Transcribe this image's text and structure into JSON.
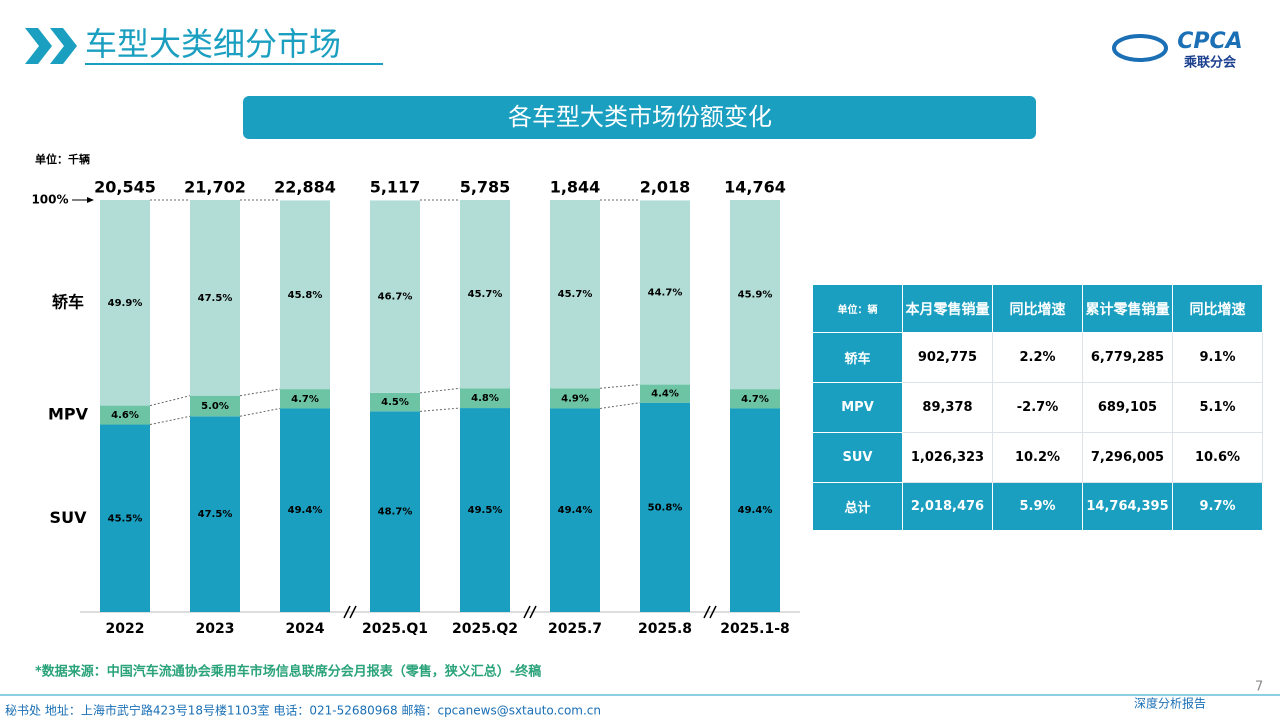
{
  "header": {
    "title": "车型大类细分市场",
    "logo_text": "CPCA",
    "logo_subtitle": "乘联分会"
  },
  "chart_data": {
    "type": "bar",
    "stacked": true,
    "title": "各车型大类市场份额变化",
    "unit_label": "单位：千辆",
    "categories": [
      "2022",
      "2023",
      "2024",
      "2025.Q1",
      "2025.Q2",
      "2025.7",
      "2025.8",
      "2025.1-8"
    ],
    "series": [
      {
        "name": "SUV",
        "color": "#1a9fc0",
        "values": [
          45.5,
          47.5,
          49.4,
          48.7,
          49.5,
          49.4,
          50.8,
          49.4
        ],
        "value_labels": [
          "45.5%",
          "47.5%",
          "49.4%",
          "48.7%",
          "49.5%",
          "49.4%",
          "50.8%",
          "49.4%"
        ]
      },
      {
        "name": "MPV",
        "color": "#6cc4a4",
        "values": [
          4.6,
          5.0,
          4.7,
          4.5,
          4.8,
          4.9,
          4.4,
          4.7
        ],
        "value_labels": [
          "4.6%",
          "5.0%",
          "4.7%",
          "4.5%",
          "4.8%",
          "4.9%",
          "4.4%",
          "4.7%"
        ]
      },
      {
        "name": "轿车",
        "color": "#b1ddd6",
        "values": [
          49.9,
          47.5,
          45.8,
          46.7,
          45.7,
          45.7,
          44.7,
          45.9
        ],
        "value_labels": [
          "49.9%",
          "47.5%",
          "45.8%",
          "46.7%",
          "45.7%",
          "45.7%",
          "44.7%",
          "45.9%"
        ]
      }
    ],
    "totals": {
      "values": [
        20545,
        21702,
        22884,
        5117,
        5785,
        1844,
        2018,
        14764
      ],
      "value_labels": [
        "20,545",
        "21,702",
        "22,884",
        "5,117",
        "5,785",
        "1,844",
        "2,018",
        "14,764"
      ]
    },
    "ylim": [
      0,
      100
    ],
    "yticks": [
      {
        "value": 100,
        "label": "100%"
      }
    ],
    "grid": false
  },
  "table": {
    "header": [
      "单位：辆",
      "本月零售销量",
      "同比增速",
      "累计零售销量",
      "同比增速"
    ],
    "rows": [
      [
        "轿车",
        "902,775",
        "2.2%",
        "6,779,285",
        "9.1%"
      ],
      [
        "MPV",
        "89,378",
        "-2.7%",
        "689,105",
        "5.1%"
      ],
      [
        "SUV",
        "1,026,323",
        "10.2%",
        "7,296,005",
        "10.6%"
      ],
      [
        "总计",
        "2,018,476",
        "5.9%",
        "14,764,395",
        "9.7%"
      ]
    ]
  },
  "source": "*数据来源：中国汽车流通协会乘用车市场信息联席分会月报表（零售，狭义汇总）-终稿",
  "footer": "秘书处  地址：上海市武宁路423号18号楼1103室  电话：021-52680968   邮箱：cpcanews@sxtauto.com.cn",
  "tagline": "深度分析报告",
  "page_number": "7"
}
